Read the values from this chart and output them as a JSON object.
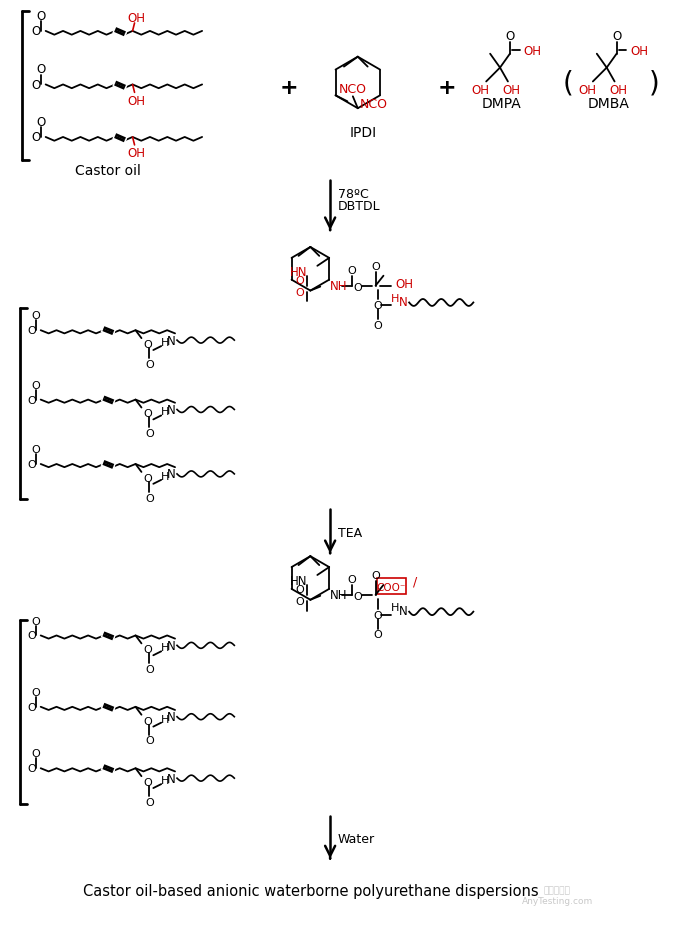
{
  "bottom_text": "Castor oil-based anionic waterborne polyurethane dispersions",
  "background_color": "#ffffff",
  "red_color": "#cc0000",
  "black_color": "#000000",
  "step1_label_line1": "78ºC",
  "step1_label_line2": "DBTDL",
  "step2_label": "TEA",
  "step3_label": "Water",
  "castor_oil_label": "Castor oil",
  "ipdi_label": "IPDI",
  "dmpa_label": "DMPA",
  "dmba_label": "DMBA"
}
